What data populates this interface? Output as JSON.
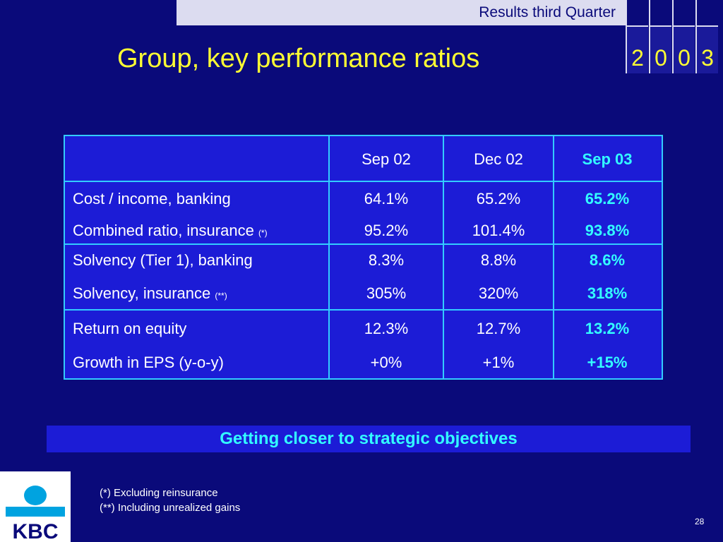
{
  "header": {
    "section": "Results third Quarter",
    "year_digits": [
      "2",
      "0",
      "0",
      "3"
    ]
  },
  "title": "Group, key performance ratios",
  "table": {
    "columns": [
      "Sep 02",
      "Dec 02",
      "Sep 03"
    ],
    "rows": [
      {
        "label": "Cost / income, banking",
        "note": "",
        "values": [
          "64.1%",
          "65.2%",
          "65.2%"
        ]
      },
      {
        "label": "Combined ratio, insurance",
        "note": "(*)",
        "values": [
          "95.2%",
          "101.4%",
          "93.8%"
        ]
      },
      {
        "label": "Solvency (Tier 1), banking",
        "note": "",
        "values": [
          "8.3%",
          "8.8%",
          "8.6%"
        ]
      },
      {
        "label": "Solvency, insurance",
        "note": "(**)",
        "values": [
          "305%",
          "320%",
          "318%"
        ]
      },
      {
        "label": "Return on equity",
        "note": "",
        "values": [
          "12.3%",
          "12.7%",
          "13.2%"
        ]
      },
      {
        "label": "Growth in EPS (y-o-y)",
        "note": "",
        "values": [
          "+0%",
          "+1%",
          "+15%"
        ]
      }
    ]
  },
  "banner": "Getting closer to strategic objectives",
  "footnotes": [
    "(*)  Excluding reinsurance",
    "(**) Including unrealized gains"
  ],
  "page_number": "28",
  "logo_text": "KBC",
  "colors": {
    "background": "#0a0a7a",
    "title": "#ffff33",
    "highlight": "#33ffff",
    "table_fill": "#1c1cd6",
    "border": "#33ccff"
  }
}
